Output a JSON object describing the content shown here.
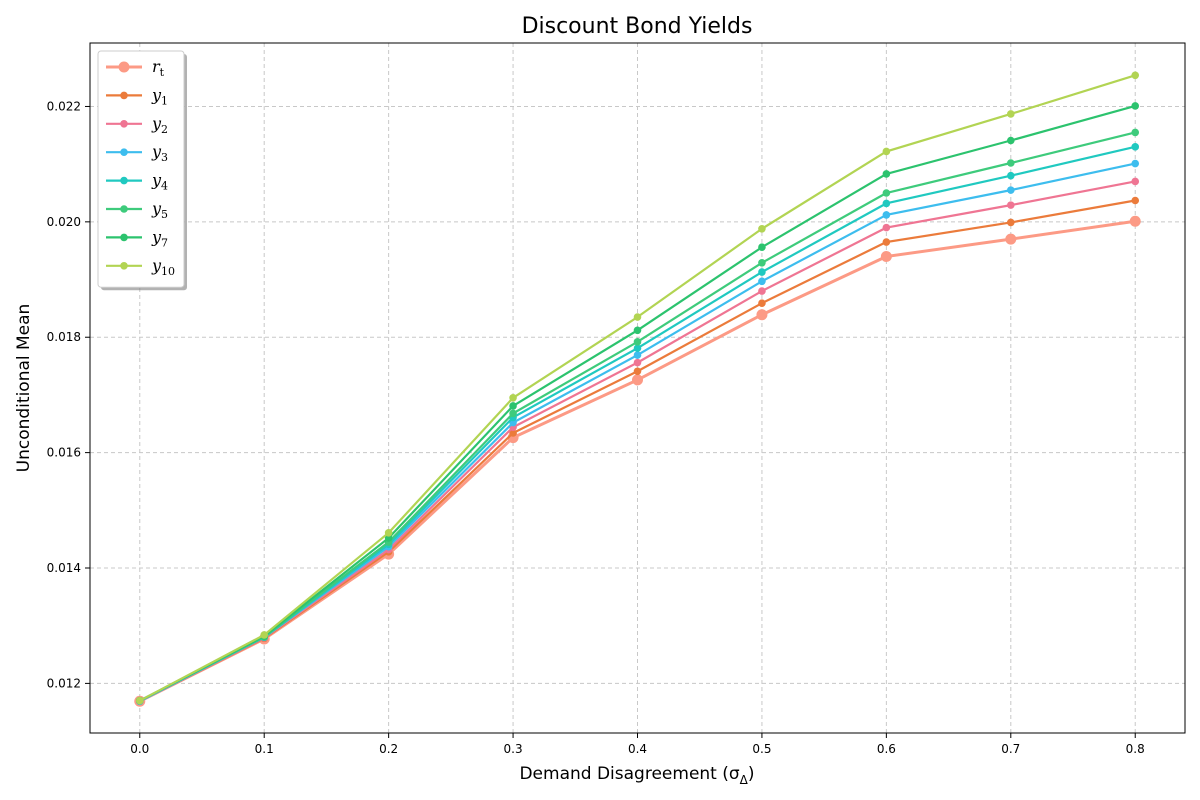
{
  "chart_data": {
    "type": "line",
    "title": "Discount Bond Yields",
    "xlabel": "Demand Disagreement (σ",
    "xlabel_sub": "Δ",
    "xlabel_tail": ")",
    "ylabel": "Unconditional Mean",
    "xlim": [
      -0.04,
      0.84
    ],
    "ylim": [
      0.01114,
      0.0231
    ],
    "grid": true,
    "legend_position": "top-left",
    "x_ticks": [
      "0.0",
      "0.1",
      "0.2",
      "0.3",
      "0.4",
      "0.5",
      "0.6",
      "0.7",
      "0.8"
    ],
    "y_ticks": [
      "0.012",
      "0.014",
      "0.016",
      "0.018",
      "0.020",
      "0.022"
    ],
    "x": [
      0.0,
      0.1,
      0.2,
      0.3,
      0.4,
      0.5,
      0.6,
      0.7,
      0.8
    ],
    "series": [
      {
        "name": "r",
        "sub": "t",
        "color": "#fc9a85",
        "values": [
          0.01169,
          0.01277,
          0.01424,
          0.01626,
          0.01726,
          0.01839,
          0.0194,
          0.0197,
          0.02001
        ]
      },
      {
        "name": "y",
        "sub": "1",
        "color": "#eb7b3b",
        "values": [
          0.01169,
          0.01278,
          0.01428,
          0.01634,
          0.01741,
          0.01859,
          0.01965,
          0.01999,
          0.02037
        ]
      },
      {
        "name": "y",
        "sub": "2",
        "color": "#ef7593",
        "values": [
          0.01169,
          0.01279,
          0.01432,
          0.01644,
          0.01756,
          0.0188,
          0.0199,
          0.02029,
          0.0207
        ]
      },
      {
        "name": "y",
        "sub": "3",
        "color": "#3dbdee",
        "values": [
          0.01169,
          0.0128,
          0.01437,
          0.01652,
          0.01769,
          0.01897,
          0.02012,
          0.02055,
          0.02101
        ]
      },
      {
        "name": "y",
        "sub": "4",
        "color": "#20c9c0",
        "values": [
          0.0117,
          0.0128,
          0.01441,
          0.01661,
          0.01781,
          0.01913,
          0.02032,
          0.0208,
          0.0213
        ]
      },
      {
        "name": "y",
        "sub": "5",
        "color": "#3ecb7c",
        "values": [
          0.0117,
          0.01281,
          0.01445,
          0.01668,
          0.01792,
          0.01929,
          0.0205,
          0.02102,
          0.02155
        ]
      },
      {
        "name": "y",
        "sub": "7",
        "color": "#2cc36e",
        "values": [
          0.0117,
          0.01282,
          0.01452,
          0.01681,
          0.01812,
          0.01956,
          0.02083,
          0.02141,
          0.02201
        ]
      },
      {
        "name": "y",
        "sub": "10",
        "color": "#b2d453",
        "values": [
          0.0117,
          0.01284,
          0.01461,
          0.01695,
          0.01835,
          0.01988,
          0.02122,
          0.02187,
          0.02254
        ]
      }
    ]
  }
}
